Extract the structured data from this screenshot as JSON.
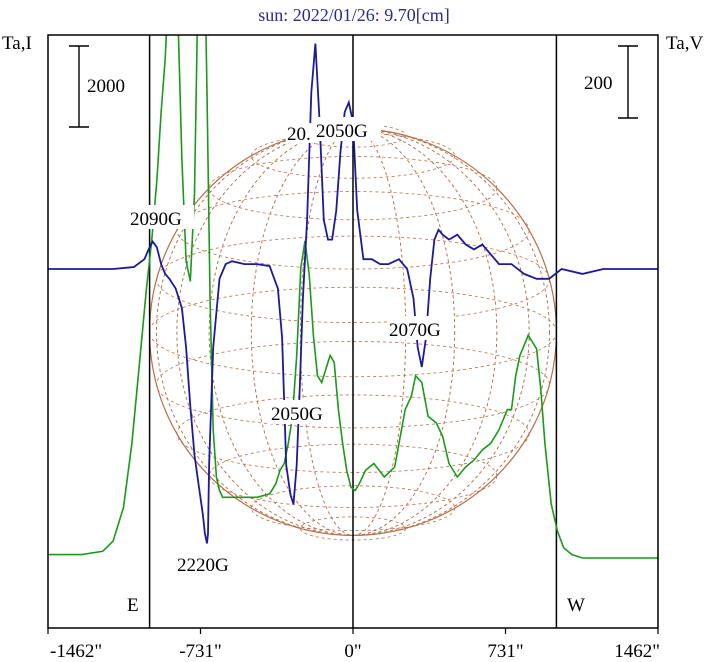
{
  "title": "sun: 2022/01/26: 9.70[cm]",
  "chart_data": {
    "type": "line",
    "title": "sun: 2022/01/26: 9.70[cm]",
    "left_axis_label": "Ta,I",
    "right_axis_label": "Ta,V",
    "left_scale_bar": "2000",
    "right_scale_bar": "200",
    "x_ticks": [
      {
        "value": -1462,
        "label": "-1462\""
      },
      {
        "value": -731,
        "label": "-731\""
      },
      {
        "value": 0,
        "label": "0\""
      },
      {
        "value": 731,
        "label": "731\""
      },
      {
        "value": 1462,
        "label": "1462\""
      }
    ],
    "xlim": [
      -1462,
      1462
    ],
    "limb_lines": [
      -975,
      0,
      975
    ],
    "limb_labels": {
      "east": "E",
      "west": "W"
    },
    "grid": false,
    "solar_disk": {
      "radius_arcsec": 975,
      "color": "#b8704a"
    },
    "colors": {
      "intensity": "#1a9a1a",
      "polarization": "#1a1a9a",
      "frame": "#000000",
      "title": "#2a2a90"
    },
    "series": [
      {
        "name": "Ta,I",
        "axis": "left",
        "x": [
          -1462,
          -1300,
          -1200,
          -1150,
          -1100,
          -1060,
          -1020,
          -990,
          -965,
          -940,
          -920,
          -900,
          -880,
          -860,
          -840,
          -820,
          -800,
          -780,
          -760,
          -740,
          -720,
          -700,
          -685,
          -670,
          -655,
          -640,
          -625,
          -610,
          -580,
          -520,
          -460,
          -400,
          -370,
          -350,
          -330,
          -310,
          -290,
          -270,
          -250,
          -230,
          -210,
          -190,
          -170,
          -150,
          -130,
          -110,
          -90,
          -70,
          -50,
          -30,
          -10,
          10,
          30,
          60,
          100,
          150,
          200,
          250,
          280,
          300,
          330,
          360,
          400,
          430,
          460,
          500,
          540,
          580,
          620,
          660,
          700,
          740,
          760,
          780,
          800,
          820,
          840,
          860,
          880,
          900,
          920,
          950,
          980,
          1010,
          1050,
          1100,
          1150,
          1200,
          1300,
          1462
        ],
        "y": [
          -2350,
          -2350,
          -2300,
          -2150,
          -1650,
          -700,
          600,
          1600,
          2300,
          3200,
          4200,
          5000,
          6300,
          6700,
          5700,
          3500,
          2000,
          1700,
          3000,
          6600,
          8100,
          4500,
          1400,
          -500,
          -1200,
          -1400,
          -1500,
          -1500,
          -1500,
          -1500,
          -1500,
          -1450,
          -1300,
          -1100,
          -1000,
          -700,
          -300,
          600,
          1900,
          2300,
          1800,
          900,
          300,
          200,
          400,
          600,
          500,
          -200,
          -700,
          -1100,
          -1350,
          -1400,
          -1300,
          -1100,
          -1000,
          -1200,
          -1050,
          -200,
          0,
          300,
          200,
          -300,
          -400,
          -600,
          -1000,
          -1200,
          -1050,
          -950,
          -800,
          -700,
          -500,
          -200,
          -200,
          300,
          600,
          750,
          900,
          800,
          700,
          100,
          -700,
          -1600,
          -2000,
          -2250,
          -2350,
          -2400,
          -2400,
          -2400,
          -2400,
          -2400
        ]
      },
      {
        "name": "Ta,V",
        "axis": "right",
        "x": [
          -1462,
          -1350,
          -1250,
          -1150,
          -1050,
          -1000,
          -980,
          -960,
          -940,
          -920,
          -900,
          -880,
          -850,
          -820,
          -800,
          -780,
          -760,
          -740,
          -720,
          -710,
          -700,
          -695,
          -690,
          -670,
          -640,
          -610,
          -580,
          -520,
          -460,
          -400,
          -360,
          -340,
          -320,
          -300,
          -285,
          -270,
          -255,
          -240,
          -220,
          -200,
          -180,
          -160,
          -140,
          -120,
          -100,
          -80,
          -60,
          -40,
          -20,
          0,
          20,
          50,
          90,
          130,
          170,
          220,
          260,
          290,
          310,
          330,
          350,
          370,
          390,
          410,
          430,
          460,
          500,
          540,
          580,
          620,
          660,
          700,
          760,
          820,
          880,
          940,
          1000,
          1100,
          1200,
          1300,
          1462
        ],
        "y": [
          0,
          0,
          0,
          0,
          2,
          10,
          20,
          28,
          22,
          5,
          -5,
          -10,
          -20,
          -40,
          -80,
          -140,
          -190,
          -220,
          -250,
          -270,
          -280,
          -270,
          -200,
          -80,
          -10,
          5,
          8,
          5,
          5,
          3,
          -20,
          -70,
          -200,
          -230,
          -240,
          -200,
          -120,
          -30,
          50,
          180,
          230,
          150,
          50,
          30,
          30,
          60,
          120,
          160,
          170,
          150,
          60,
          10,
          10,
          5,
          5,
          10,
          0,
          -30,
          -80,
          -100,
          -70,
          -10,
          30,
          40,
          35,
          30,
          35,
          25,
          20,
          25,
          15,
          5,
          5,
          -5,
          -10,
          -10,
          0,
          -5,
          0,
          0,
          0
        ]
      }
    ]
  }
}
